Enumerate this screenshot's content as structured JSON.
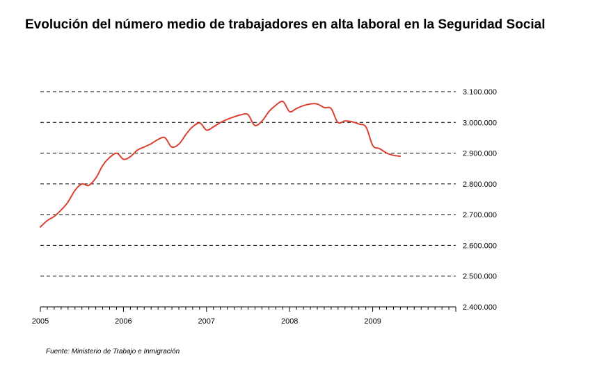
{
  "chart_data": {
    "type": "line",
    "title": "Evolución del número medio de trabajadores en alta laboral en la Seguridad Social",
    "source": "Fuente: Ministerio de Trabajo e Inmigración",
    "xlabel": "",
    "ylabel": "",
    "x_ticks": [
      "2005",
      "2006",
      "2007",
      "2008",
      "2009"
    ],
    "y_ticks": [
      "2.400.000",
      "2.500.000",
      "2.600.000",
      "2.700.000",
      "2.800.000",
      "2.900.000",
      "3.000.000",
      "3.100.000"
    ],
    "ylim": [
      2400000,
      3150000
    ],
    "xlim": [
      2005,
      2010
    ],
    "grid": "horizontal-dashed",
    "series": [
      {
        "color": "#d94030",
        "points": [
          [
            2005.0,
            2660000
          ],
          [
            2005.08,
            2680000
          ],
          [
            2005.17,
            2695000
          ],
          [
            2005.25,
            2715000
          ],
          [
            2005.33,
            2740000
          ],
          [
            2005.42,
            2780000
          ],
          [
            2005.5,
            2800000
          ],
          [
            2005.58,
            2795000
          ],
          [
            2005.67,
            2820000
          ],
          [
            2005.75,
            2860000
          ],
          [
            2005.83,
            2885000
          ],
          [
            2005.92,
            2900000
          ],
          [
            2006.0,
            2880000
          ],
          [
            2006.08,
            2888000
          ],
          [
            2006.17,
            2910000
          ],
          [
            2006.25,
            2920000
          ],
          [
            2006.33,
            2930000
          ],
          [
            2006.42,
            2945000
          ],
          [
            2006.5,
            2950000
          ],
          [
            2006.58,
            2920000
          ],
          [
            2006.67,
            2930000
          ],
          [
            2006.75,
            2960000
          ],
          [
            2006.83,
            2985000
          ],
          [
            2006.92,
            2998000
          ],
          [
            2007.0,
            2975000
          ],
          [
            2007.08,
            2985000
          ],
          [
            2007.17,
            3000000
          ],
          [
            2007.25,
            3010000
          ],
          [
            2007.33,
            3018000
          ],
          [
            2007.42,
            3025000
          ],
          [
            2007.5,
            3025000
          ],
          [
            2007.58,
            2990000
          ],
          [
            2007.67,
            3005000
          ],
          [
            2007.75,
            3035000
          ],
          [
            2007.83,
            3055000
          ],
          [
            2007.92,
            3068000
          ],
          [
            2008.0,
            3035000
          ],
          [
            2008.08,
            3045000
          ],
          [
            2008.17,
            3055000
          ],
          [
            2008.25,
            3060000
          ],
          [
            2008.33,
            3060000
          ],
          [
            2008.42,
            3048000
          ],
          [
            2008.5,
            3045000
          ],
          [
            2008.58,
            3000000
          ],
          [
            2008.67,
            3005000
          ],
          [
            2008.75,
            3002000
          ],
          [
            2008.83,
            2995000
          ],
          [
            2008.92,
            2985000
          ],
          [
            2009.0,
            2925000
          ],
          [
            2009.08,
            2915000
          ],
          [
            2009.17,
            2900000
          ],
          [
            2009.25,
            2893000
          ],
          [
            2009.33,
            2890000
          ]
        ]
      }
    ]
  },
  "colors": {
    "line": "#d94030",
    "grid": "#000000",
    "axis": "#000000"
  }
}
